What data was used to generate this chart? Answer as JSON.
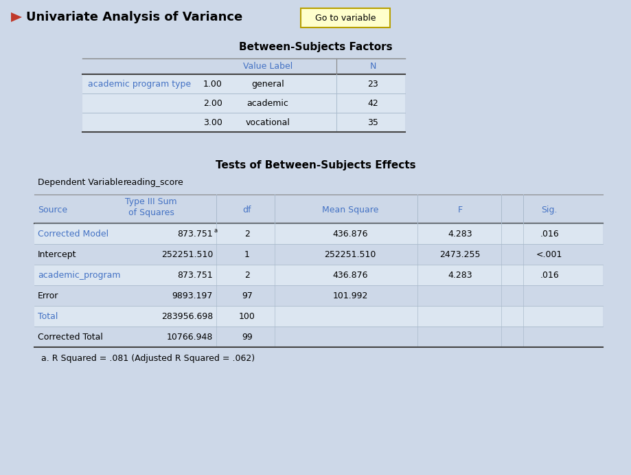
{
  "bg_color": "#cdd8e8",
  "white": "#ffffff",
  "light_blue_row": "#dce6f1",
  "blue_text": "#4472c4",
  "header_arrow_color": "#c0392b",
  "header_title": "Univariate Analysis of Variance",
  "button_text": "Go to variable",
  "button_bg": "#ffffcc",
  "button_border": "#b8a000",
  "title1": "Between-Subjects Factors",
  "title2": "Tests of Between-Subjects Effects",
  "dep_var_label": "Dependent Variable:",
  "dep_var_value": "reading_score",
  "bsf_rows": [
    [
      "academic program type",
      "1.00",
      "general",
      "23"
    ],
    [
      "",
      "2.00",
      "academic",
      "42"
    ],
    [
      "",
      "3.00",
      "vocational",
      "35"
    ]
  ],
  "tbs_rows": [
    [
      "Corrected Model",
      "873.751",
      "a",
      "2",
      "436.876",
      "4.283",
      ".016"
    ],
    [
      "Intercept",
      "252251.510",
      "",
      "1",
      "252251.510",
      "2473.255",
      "<.001"
    ],
    [
      "academic_program",
      "873.751",
      "",
      "2",
      "436.876",
      "4.283",
      ".016"
    ],
    [
      "Error",
      "9893.197",
      "",
      "97",
      "101.992",
      "",
      ""
    ],
    [
      "Total",
      "283956.698",
      "",
      "100",
      "",
      "",
      ""
    ],
    [
      "Corrected Total",
      "10766.948",
      "",
      "99",
      "",
      "",
      ""
    ]
  ],
  "footnote": "a. R Squared = .081 (Adjusted R Squared = .062)"
}
